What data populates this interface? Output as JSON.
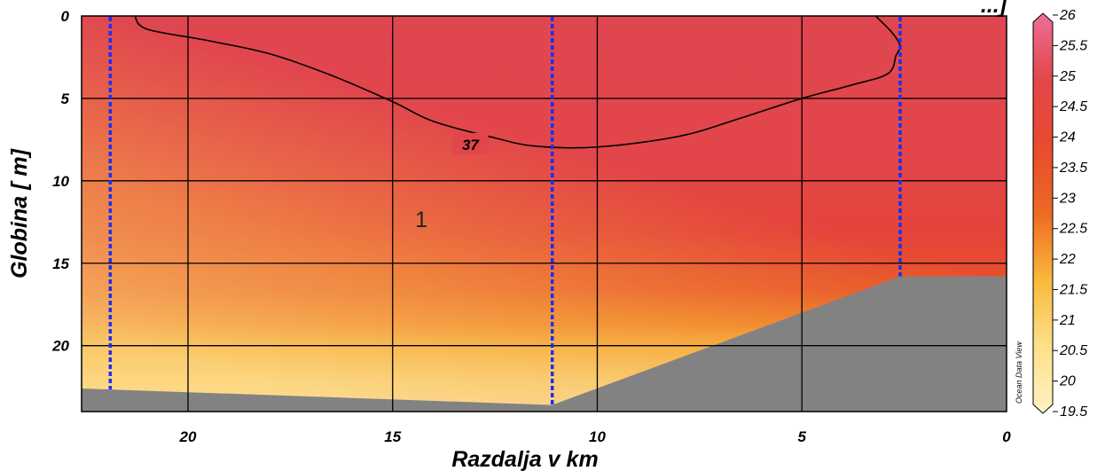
{
  "chart_data": {
    "type": "heatmap",
    "title": "",
    "title_partial": "...] ",
    "xlabel": "Razdalja v km",
    "ylabel": "Globina  [ m]",
    "xlim": [
      22.6,
      0
    ],
    "ylim": [
      0,
      24
    ],
    "x_ticks": [
      "20",
      "15",
      "10",
      "5",
      "0"
    ],
    "x_tick_values": [
      20,
      15,
      10,
      5,
      0
    ],
    "y_ticks": [
      "0",
      "5",
      "10",
      "15",
      "20"
    ],
    "y_tick_values": [
      0,
      5,
      10,
      15,
      20
    ],
    "grid": true,
    "colorbar": {
      "min": 19.5,
      "max": 26,
      "ticks": [
        "26",
        "25.5",
        "25",
        "24.5",
        "24",
        "23.5",
        "23",
        "22.5",
        "22",
        "21.5",
        "21",
        "20.5",
        "20",
        "19.5"
      ],
      "tick_values": [
        26,
        25.5,
        25,
        24.5,
        24,
        23.5,
        23,
        22.5,
        22,
        21.5,
        21,
        20.5,
        20,
        19.5
      ],
      "colors": [
        "#fff2c4",
        "#fde08a",
        "#f9b93a",
        "#ee6a24",
        "#e84b2e",
        "#e2464a",
        "#ec6f98"
      ],
      "credit": "Ocean Data View"
    },
    "stations_km": [
      21.9,
      11.1,
      2.6
    ],
    "bottom_profile": [
      {
        "x": 22.6,
        "y": 22.6
      },
      {
        "x": 11.1,
        "y": 23.6
      },
      {
        "x": 2.6,
        "y": 15.8
      },
      {
        "x": 0,
        "y": 15.8
      }
    ],
    "contour_levels": [
      {
        "label": "37",
        "points": [
          [
            21.3,
            0
          ],
          [
            21.0,
            0.8
          ],
          [
            19.5,
            1.5
          ],
          [
            18.0,
            2.3
          ],
          [
            16.5,
            3.6
          ],
          [
            15.0,
            5.2
          ],
          [
            14.0,
            6.4
          ],
          [
            12.5,
            7.4
          ],
          [
            11.5,
            7.9
          ],
          [
            10.0,
            7.95
          ],
          [
            8.0,
            7.3
          ],
          [
            6.5,
            6.2
          ],
          [
            5.0,
            5.0
          ],
          [
            3.8,
            4.2
          ],
          [
            2.9,
            3.5
          ],
          [
            2.7,
            2.4
          ],
          [
            2.6,
            1.8
          ],
          [
            2.8,
            1.0
          ],
          [
            3.2,
            0
          ]
        ]
      }
    ],
    "annotations": [
      "1"
    ],
    "shading_colors": {
      "ocean_floor": "#828282"
    }
  }
}
